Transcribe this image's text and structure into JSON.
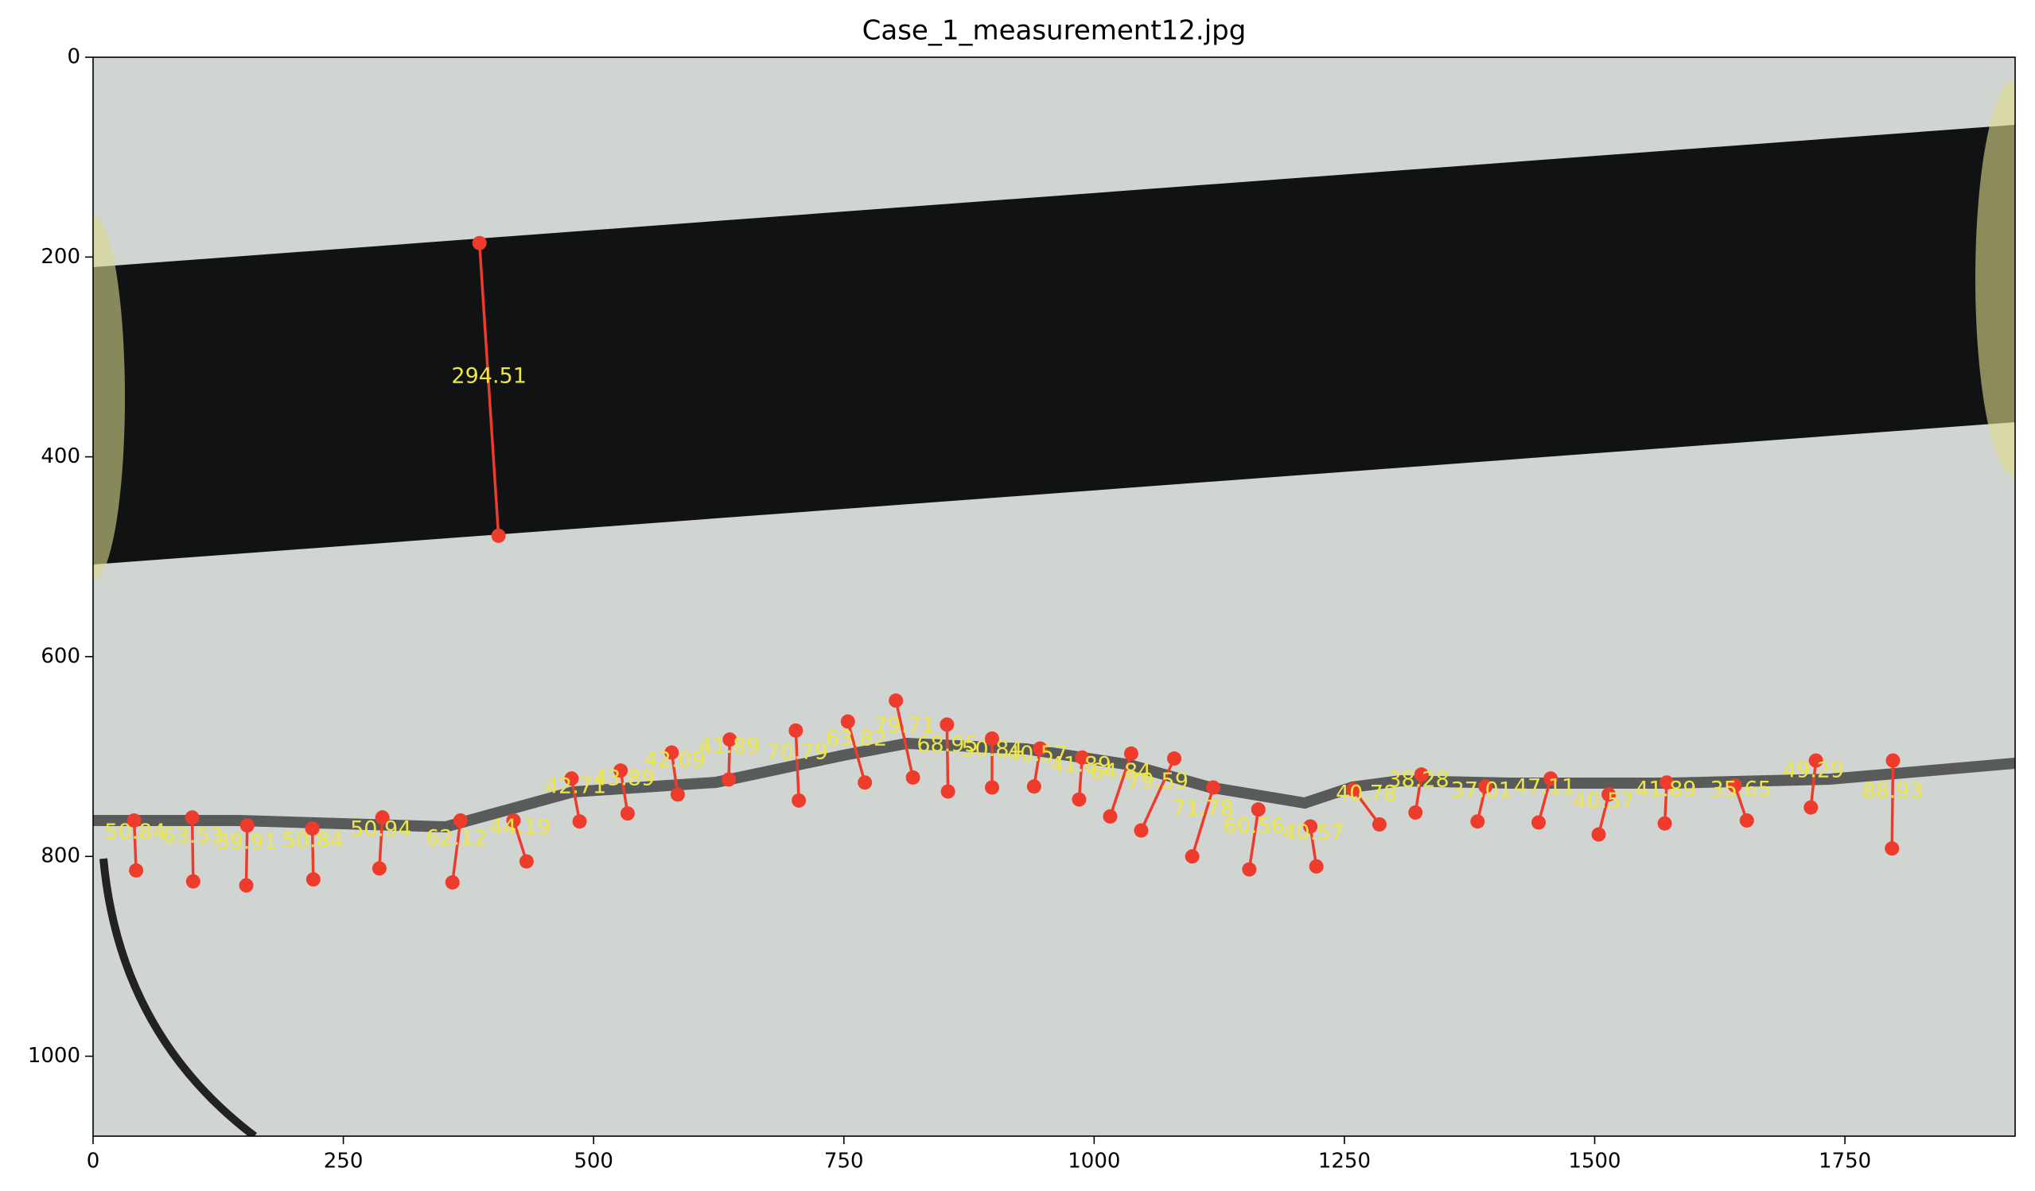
{
  "chart_data": {
    "type": "segments",
    "title": "Case_1_measurement12.jpg",
    "xlim": [
      0,
      1920
    ],
    "ylim": [
      1080,
      0
    ],
    "xticks": [
      0,
      250,
      500,
      750,
      1000,
      1250,
      1500,
      1750
    ],
    "yticks": [
      0,
      200,
      400,
      600,
      800,
      1000
    ],
    "color": "#ee3b2b",
    "label_color": "#ece646",
    "segments": [
      {
        "x": [
          386,
          405
        ],
        "y": [
          186,
          479
        ],
        "value": 294.51
      },
      {
        "x": [
          41,
          43
        ],
        "y": [
          764,
          814
        ],
        "value": 50.84
      },
      {
        "x": [
          99,
          100
        ],
        "y": [
          761,
          825
        ],
        "value": 63.53
      },
      {
        "x": [
          154,
          153
        ],
        "y": [
          769,
          829
        ],
        "value": 39.91
      },
      {
        "x": [
          219,
          220
        ],
        "y": [
          772,
          823
        ],
        "value": 50.84
      },
      {
        "x": [
          289,
          286
        ],
        "y": [
          761,
          812
        ],
        "value": 50.94
      },
      {
        "x": [
          367,
          359
        ],
        "y": [
          764,
          826
        ],
        "value": 62.12
      },
      {
        "x": [
          420,
          433
        ],
        "y": [
          764,
          805
        ],
        "value": 44.19
      },
      {
        "x": [
          478,
          486
        ],
        "y": [
          722,
          765
        ],
        "value": 42.71
      },
      {
        "x": [
          527,
          534
        ],
        "y": [
          714,
          757
        ],
        "value": 43.89
      },
      {
        "x": [
          578,
          584
        ],
        "y": [
          696,
          738
        ],
        "value": 42.09
      },
      {
        "x": [
          636,
          635
        ],
        "y": [
          683,
          723
        ],
        "value": 41.89
      },
      {
        "x": [
          702,
          705
        ],
        "y": [
          674,
          744
        ],
        "value": 70.79
      },
      {
        "x": [
          754,
          771
        ],
        "y": [
          665,
          726
        ],
        "value": 63.82
      },
      {
        "x": [
          802,
          819
        ],
        "y": [
          644,
          721
        ],
        "value": 79.71
      },
      {
        "x": [
          853,
          854
        ],
        "y": [
          668,
          735
        ],
        "value": 68.95
      },
      {
        "x": [
          898,
          898
        ],
        "y": [
          682,
          731
        ],
        "value": 50.84
      },
      {
        "x": [
          946,
          940
        ],
        "y": [
          692,
          730
        ],
        "value": 40.57
      },
      {
        "x": [
          988,
          985
        ],
        "y": [
          701,
          743
        ],
        "value": 41.89
      },
      {
        "x": [
          1037,
          1016
        ],
        "y": [
          697,
          760
        ],
        "value": 64.84
      },
      {
        "x": [
          1080,
          1047
        ],
        "y": [
          702,
          774
        ],
        "value": 79.59
      },
      {
        "x": [
          1119,
          1098
        ],
        "y": [
          731,
          800
        ],
        "value": 71.78
      },
      {
        "x": [
          1164,
          1155
        ],
        "y": [
          753,
          813
        ],
        "value": 60.56
      },
      {
        "x": [
          1216,
          1222
        ],
        "y": [
          770,
          810
        ],
        "value": 40.57
      },
      {
        "x": [
          1259,
          1285
        ],
        "y": [
          733,
          768
        ],
        "value": 40.78
      },
      {
        "x": [
          1327,
          1321
        ],
        "y": [
          718,
          756
        ],
        "value": 38.28
      },
      {
        "x": [
          1391,
          1383
        ],
        "y": [
          730,
          765
        ],
        "value": 37.01
      },
      {
        "x": [
          1456,
          1444
        ],
        "y": [
          722,
          766
        ],
        "value": 47.11
      },
      {
        "x": [
          1514,
          1504
        ],
        "y": [
          738,
          778
        ],
        "value": 40.57
      },
      {
        "x": [
          1572,
          1570
        ],
        "y": [
          726,
          767
        ],
        "value": 41.89
      },
      {
        "x": [
          1640,
          1652
        ],
        "y": [
          729,
          764
        ],
        "value": 35.65
      },
      {
        "x": [
          1721,
          1716
        ],
        "y": [
          704,
          751
        ],
        "value": 49.29
      },
      {
        "x": [
          1798,
          1797
        ],
        "y": [
          704,
          792
        ],
        "value": 88.93
      }
    ]
  }
}
